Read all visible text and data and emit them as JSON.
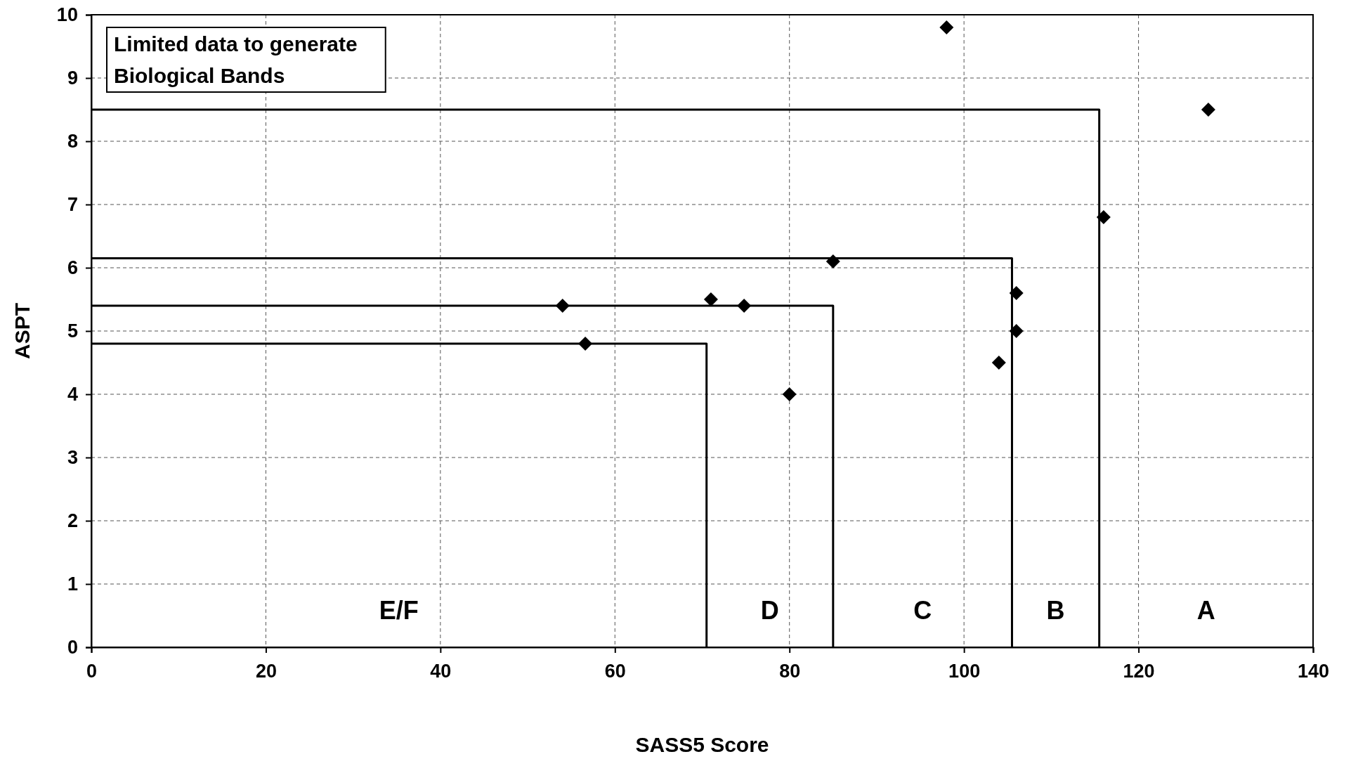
{
  "chart_data": {
    "type": "scatter",
    "xlabel": "SASS5 Score",
    "ylabel": "ASPT",
    "xlim": [
      0,
      140
    ],
    "xticks": [
      0,
      20,
      40,
      60,
      80,
      100,
      120,
      140
    ],
    "ylim": [
      0,
      10
    ],
    "yticks": [
      0,
      1,
      2,
      3,
      4,
      5,
      6,
      7,
      8,
      9,
      10
    ],
    "grid": true,
    "series": [
      {
        "color": "#000000",
        "marker": "diamond",
        "x": [
          98,
          128,
          116,
          85,
          106,
          106,
          104,
          71,
          74.8,
          54,
          56.6,
          80
        ],
        "values": [
          9.8,
          8.5,
          6.8,
          6.1,
          5.6,
          5.0,
          4.5,
          5.5,
          5.4,
          5.4,
          4.8,
          4.0
        ]
      },
      {
        "type": "line",
        "color": "#000000",
        "marker": "none",
        "line_style": "solid",
        "x": [
          0,
          115.5,
          115.5
        ],
        "values": [
          8.5,
          8.5,
          0
        ]
      },
      {
        "type": "line",
        "color": "#000000",
        "marker": "none",
        "line_style": "solid",
        "x": [
          0,
          105.5,
          105.5
        ],
        "values": [
          6.15,
          6.15,
          0
        ]
      },
      {
        "type": "line",
        "color": "#000000",
        "marker": "none",
        "line_style": "solid",
        "x": [
          0,
          85,
          85
        ],
        "values": [
          5.4,
          5.4,
          0
        ]
      },
      {
        "type": "line",
        "color": "#000000",
        "marker": "none",
        "line_style": "solid",
        "x": [
          0,
          70.5,
          70.5
        ],
        "values": [
          4.8,
          4.8,
          0
        ]
      }
    ],
    "annotations": [
      "Limited data to generate\nBiological Bands",
      "E/F",
      "D",
      "C",
      "B",
      "A"
    ]
  }
}
